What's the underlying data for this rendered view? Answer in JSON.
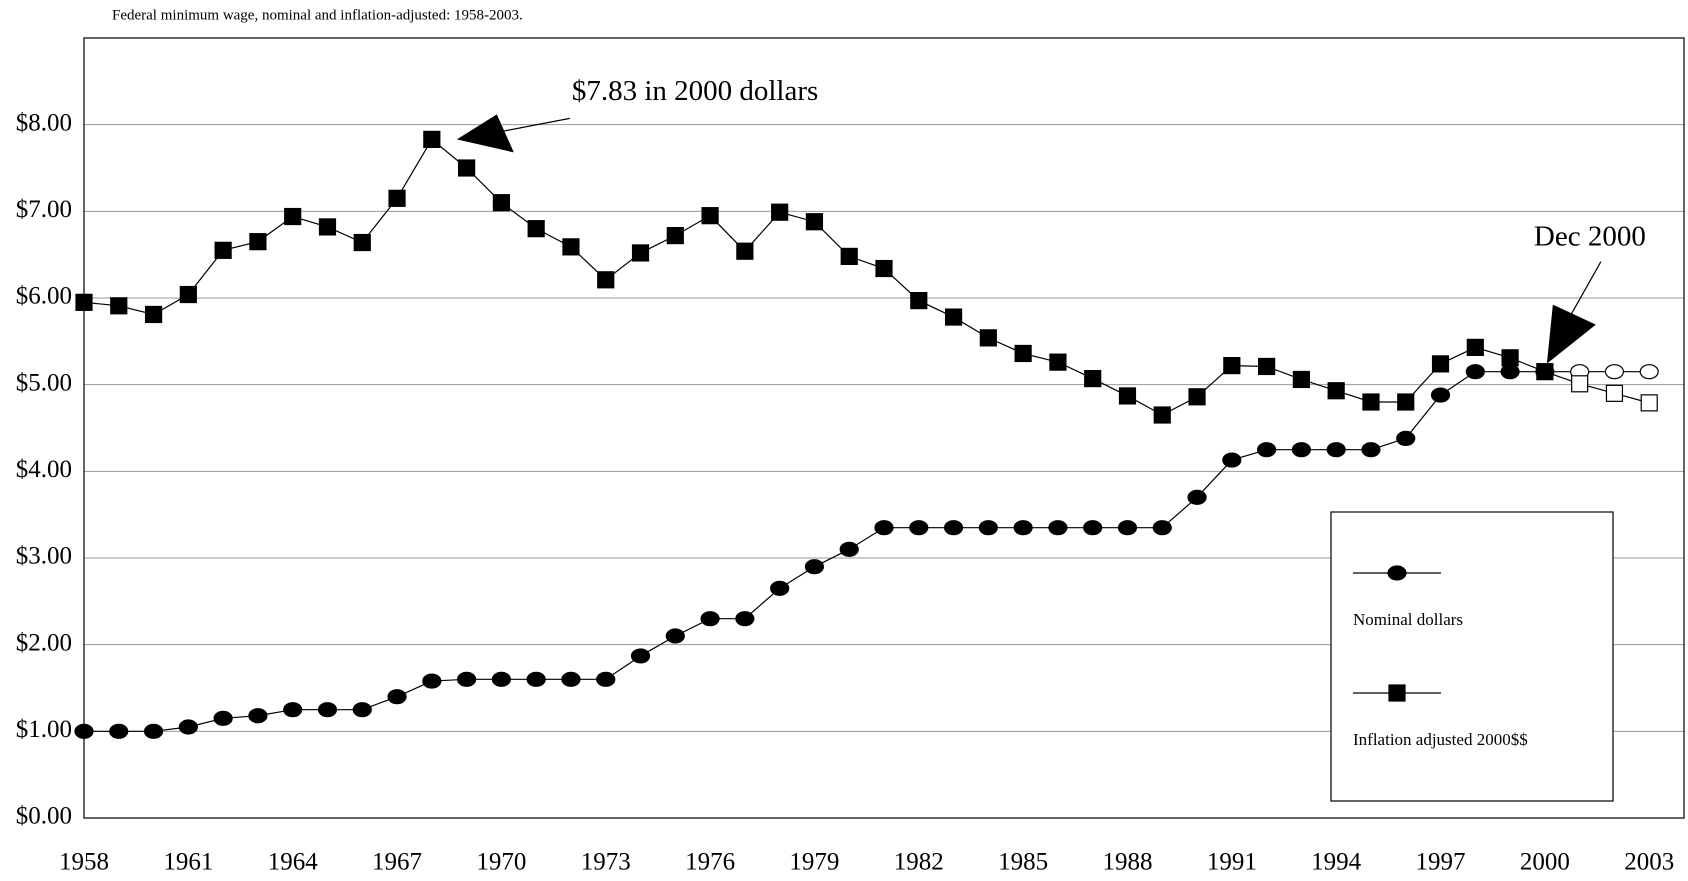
{
  "chart_data": {
    "type": "line",
    "title": "Federal minimum wage, nominal and inflation-adjusted:  1958-2003.",
    "x": [
      1958,
      1959,
      1960,
      1961,
      1962,
      1963,
      1964,
      1965,
      1966,
      1967,
      1968,
      1969,
      1970,
      1971,
      1972,
      1973,
      1974,
      1975,
      1976,
      1977,
      1978,
      1979,
      1980,
      1981,
      1982,
      1983,
      1984,
      1985,
      1986,
      1987,
      1988,
      1989,
      1990,
      1991,
      1992,
      1993,
      1994,
      1995,
      1996,
      1997,
      1998,
      1999,
      2000,
      2001,
      2002,
      2003
    ],
    "series": [
      {
        "name": "Nominal dollars",
        "color": "#000000",
        "marker": "circle",
        "values": [
          1.0,
          1.0,
          1.0,
          1.05,
          1.15,
          1.18,
          1.25,
          1.25,
          1.25,
          1.4,
          1.58,
          1.6,
          1.6,
          1.6,
          1.6,
          1.6,
          1.87,
          2.1,
          2.3,
          2.3,
          2.65,
          2.9,
          3.1,
          3.35,
          3.35,
          3.35,
          3.35,
          3.35,
          3.35,
          3.35,
          3.35,
          3.35,
          3.7,
          4.13,
          4.25,
          4.25,
          4.25,
          4.25,
          4.38,
          4.88,
          5.15,
          5.15,
          5.15,
          5.15,
          5.15,
          5.15
        ]
      },
      {
        "name": "Inflation adjusted 2000$$",
        "color": "#000000",
        "marker": "square",
        "values": [
          5.95,
          5.91,
          5.81,
          6.04,
          6.55,
          6.65,
          6.94,
          6.82,
          6.64,
          7.15,
          7.83,
          7.5,
          7.1,
          6.8,
          6.59,
          6.21,
          6.52,
          6.72,
          6.95,
          6.54,
          6.99,
          6.88,
          6.48,
          6.34,
          5.97,
          5.78,
          5.54,
          5.36,
          5.26,
          5.07,
          4.87,
          4.65,
          4.86,
          5.22,
          5.21,
          5.06,
          4.93,
          4.8,
          4.8,
          5.24,
          5.43,
          5.31,
          5.15,
          5.01,
          4.9,
          4.79
        ]
      }
    ],
    "hollow_after": 2000,
    "xlim": [
      1958,
      2004
    ],
    "xticks": [
      1958,
      1961,
      1964,
      1967,
      1970,
      1973,
      1976,
      1979,
      1982,
      1985,
      1988,
      1991,
      1994,
      1997,
      2000,
      2003
    ],
    "ylim": [
      0,
      9
    ],
    "yticks": [
      {
        "value": 0,
        "label": "$0.00"
      },
      {
        "value": 1,
        "label": "$1.00"
      },
      {
        "value": 2,
        "label": "$2.00"
      },
      {
        "value": 3,
        "label": "$3.00"
      },
      {
        "value": 4,
        "label": "$4.00"
      },
      {
        "value": 5,
        "label": "$5.00"
      },
      {
        "value": 6,
        "label": "$6.00"
      },
      {
        "value": 7,
        "label": "$7.00"
      },
      {
        "value": 8,
        "label": "$8.00"
      }
    ],
    "grid": true,
    "legend": "lower-right",
    "annotations": [
      {
        "text": "$7.83 in 2000 dollars",
        "x": 1968,
        "y": 7.83
      },
      {
        "text": "Dec 2000",
        "x": 2000,
        "y": 5.15
      }
    ]
  }
}
